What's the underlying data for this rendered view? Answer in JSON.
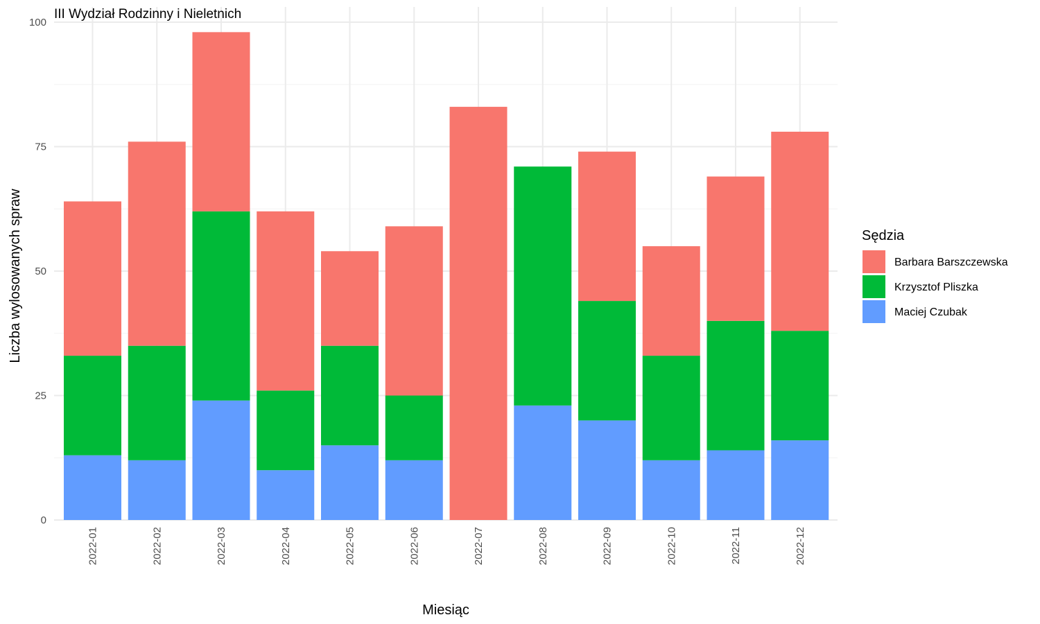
{
  "chart_data": {
    "type": "bar",
    "stacked": true,
    "title": "III Wydział Rodzinny i Nieletnich",
    "xlabel": "Miesiąc",
    "ylabel": "Liczba wylosowanych spraw",
    "ylim": [
      0,
      100
    ],
    "yticks": [
      0,
      25,
      50,
      75,
      100
    ],
    "grid": true,
    "legend_title": "Sędzia",
    "legend_position": "right",
    "categories": [
      "2022-01",
      "2022-02",
      "2022-03",
      "2022-04",
      "2022-05",
      "2022-06",
      "2022-07",
      "2022-08",
      "2022-09",
      "2022-10",
      "2022-11",
      "2022-12"
    ],
    "series": [
      {
        "name": "Barbara Barszczewska",
        "color": "#F8766D",
        "values": [
          31,
          41,
          36,
          36,
          19,
          34,
          83,
          0,
          30,
          22,
          29,
          40
        ]
      },
      {
        "name": "Krzysztof Pliszka",
        "color": "#00BA38",
        "values": [
          20,
          23,
          38,
          16,
          20,
          13,
          0,
          48,
          24,
          21,
          26,
          22
        ]
      },
      {
        "name": "Maciej Czubak",
        "color": "#619CFF",
        "values": [
          13,
          12,
          24,
          10,
          15,
          12,
          0,
          23,
          20,
          12,
          14,
          16
        ]
      }
    ],
    "stack_order_bottom_to_top": [
      "Maciej Czubak",
      "Krzysztof Pliszka",
      "Barbara Barszczewska"
    ]
  }
}
